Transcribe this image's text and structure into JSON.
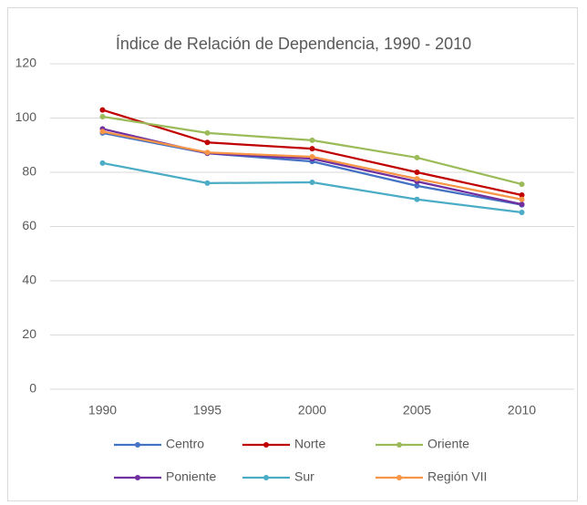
{
  "chart_data": {
    "type": "line",
    "title": "Índice de Relación de Dependencia, 1990 - 2010",
    "categories": [
      "1990",
      "1995",
      "2000",
      "2005",
      "2010"
    ],
    "series": [
      {
        "name": "Centro",
        "color": "#4472c4",
        "values": [
          94.5,
          87,
          84,
          75,
          68
        ]
      },
      {
        "name": "Norte",
        "color": "#c00000",
        "values": [
          103,
          91,
          88.7,
          80,
          71.6
        ]
      },
      {
        "name": "Oriente",
        "color": "#9bbb59",
        "values": [
          100.5,
          94.5,
          91.8,
          85.4,
          75.6
        ]
      },
      {
        "name": "Poniente",
        "color": "#7030a0",
        "values": [
          96,
          87,
          85,
          76.6,
          68.2
        ]
      },
      {
        "name": "Sur",
        "color": "#4bacc6",
        "values": [
          83.4,
          76,
          76.3,
          70,
          65.2
        ]
      },
      {
        "name": "Región VII",
        "color": "#f79646",
        "values": [
          95,
          87.3,
          85.7,
          77.6,
          70
        ]
      }
    ],
    "ylim": [
      0,
      120
    ],
    "yticks": [
      0,
      20,
      40,
      60,
      80,
      100,
      120
    ],
    "grid": true,
    "legend": "bottom"
  }
}
